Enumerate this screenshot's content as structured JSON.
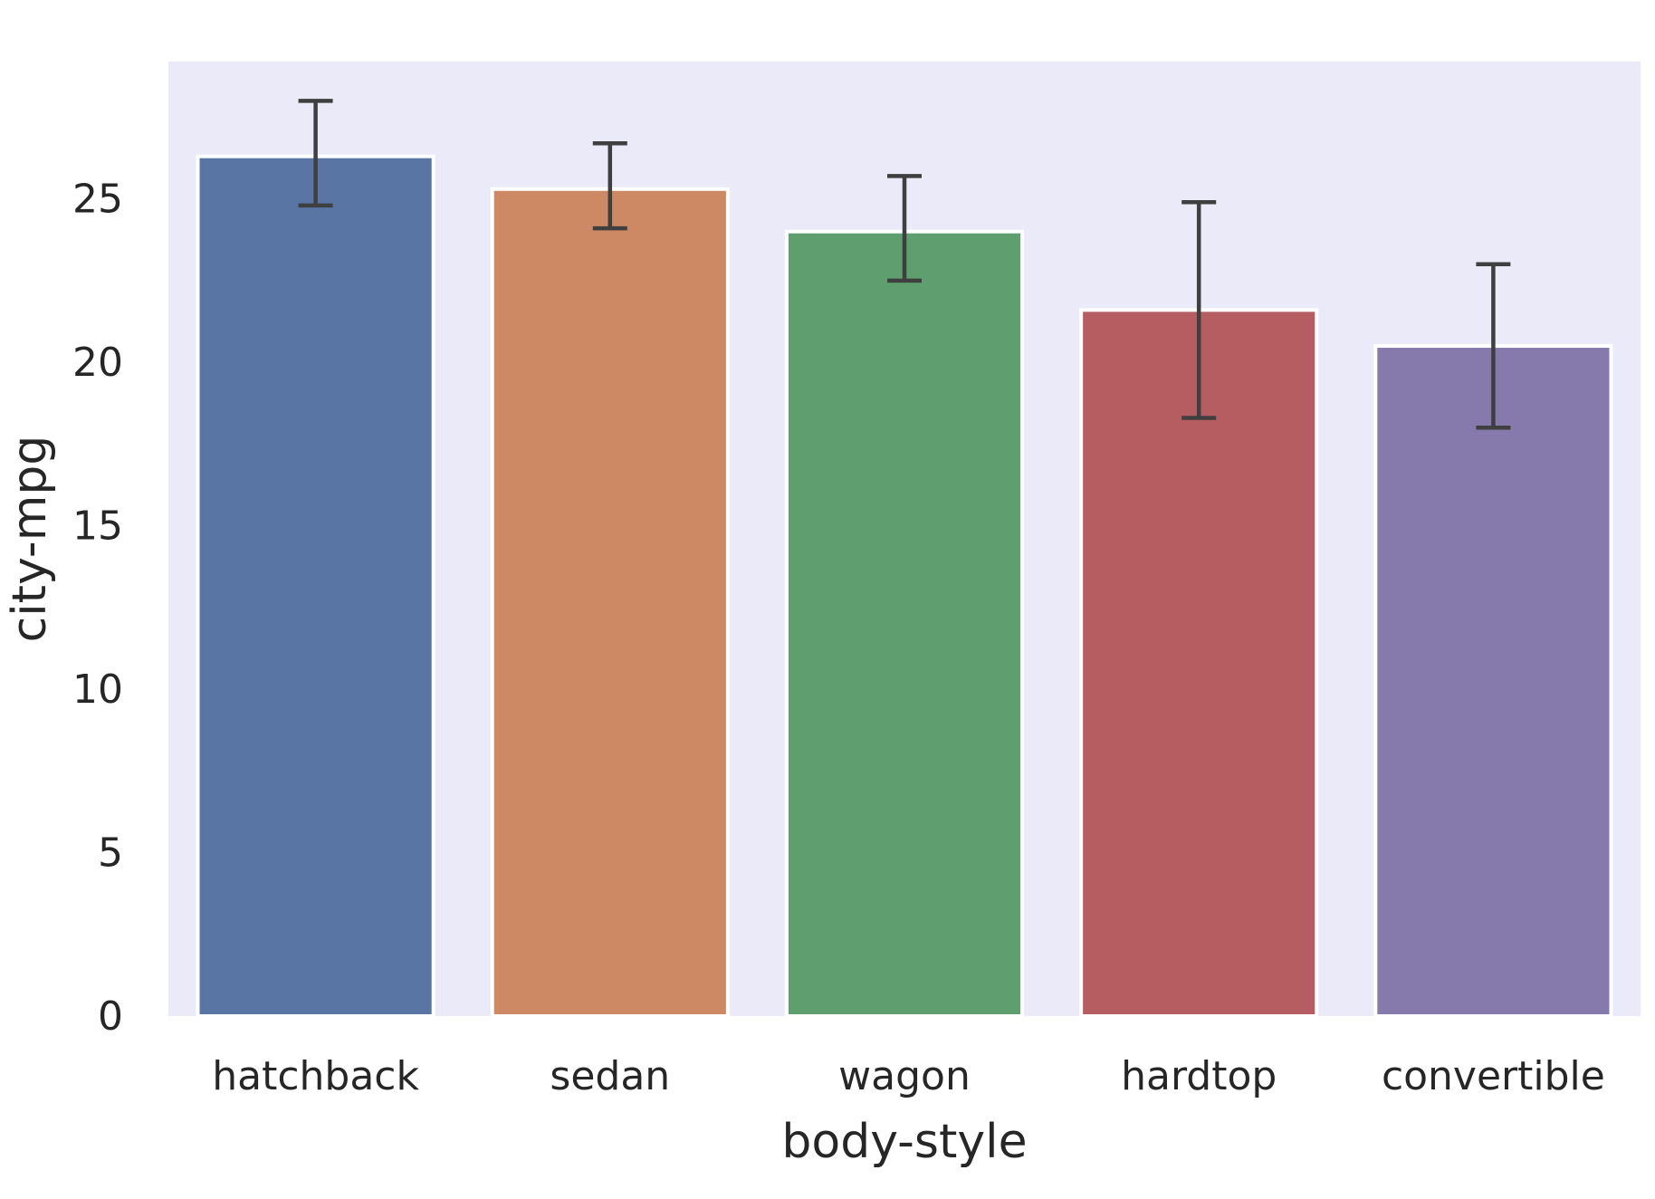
{
  "chart_data": {
    "type": "bar",
    "title": "",
    "xlabel": "body-style",
    "ylabel": "city-mpg",
    "categories": [
      "hatchback",
      "sedan",
      "wagon",
      "hardtop",
      "convertible"
    ],
    "values": [
      26.3,
      25.3,
      24.0,
      21.6,
      20.5
    ],
    "error_bars": [
      {
        "low": 24.8,
        "high": 28.0
      },
      {
        "low": 24.1,
        "high": 26.7
      },
      {
        "low": 22.5,
        "high": 25.7
      },
      {
        "low": 18.3,
        "high": 24.9
      },
      {
        "low": 18.0,
        "high": 23.0
      }
    ],
    "yticks": [
      "0",
      "5",
      "10",
      "15",
      "20",
      "25"
    ],
    "ylim": [
      0,
      29.2
    ],
    "grid": false,
    "colors": [
      "#5975a4",
      "#cc8963",
      "#5f9e6e",
      "#b55d60",
      "#857aab"
    ],
    "background": "#eaeaf9",
    "errorbar_color": "#3f3f3f"
  }
}
